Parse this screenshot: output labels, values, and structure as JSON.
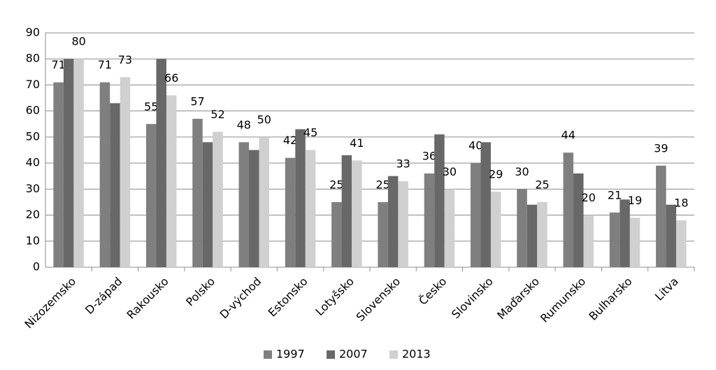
{
  "chart_data": {
    "type": "bar",
    "categories": [
      "Nizozemsko",
      "D-západ",
      "Rakousko",
      "Polsko",
      "D-východ",
      "Estonsko",
      "Lotyšsko",
      "Slovensko",
      "Česko",
      "Slovinsko",
      "Maďarsko",
      "Rumunsko",
      "Bulharsko",
      "Litva"
    ],
    "series": [
      {
        "name": "1997",
        "color": "#7f7f7f",
        "show_labels": true,
        "values": [
          71,
          71,
          55,
          57,
          48,
          42,
          25,
          25,
          36,
          40,
          30,
          44,
          21,
          39
        ]
      },
      {
        "name": "2007",
        "color": "#686868",
        "show_labels": false,
        "values": [
          80,
          63,
          80,
          48,
          45,
          53,
          43,
          35,
          51,
          48,
          24,
          36,
          26,
          24
        ]
      },
      {
        "name": "2013",
        "color": "#d0d0d0",
        "show_labels": true,
        "values": [
          80,
          73,
          66,
          52,
          50,
          45,
          41,
          33,
          30,
          29,
          25,
          20,
          19,
          18
        ]
      }
    ],
    "ylim": [
      0,
      90
    ],
    "yticks": [
      0,
      10,
      20,
      30,
      40,
      50,
      60,
      70,
      80,
      90
    ],
    "grid": true,
    "legend": "bottom"
  }
}
